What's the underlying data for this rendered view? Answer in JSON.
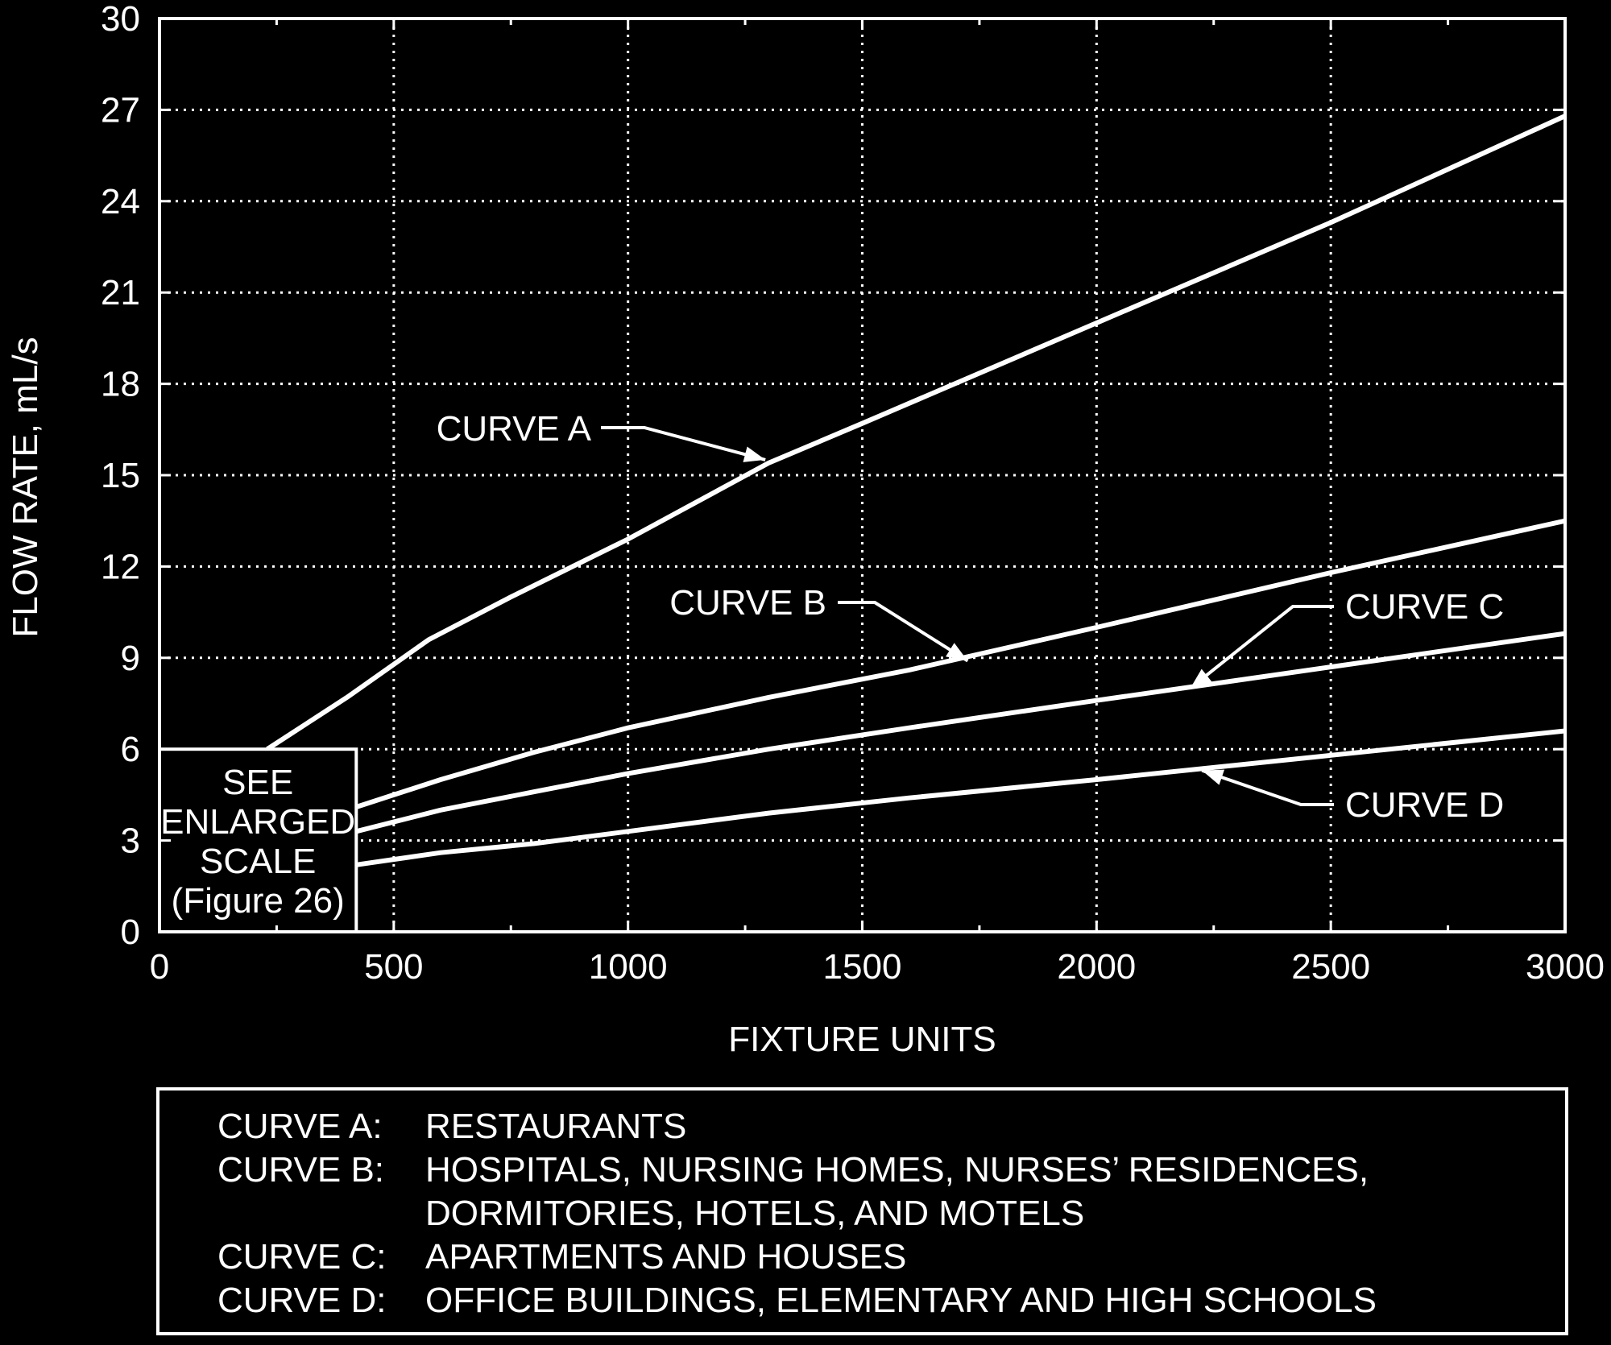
{
  "chart_data": {
    "type": "line",
    "xlabel": "FIXTURE UNITS",
    "ylabel": "FLOW RATE, mL/s",
    "xlim": [
      0,
      3000
    ],
    "ylim": [
      0,
      30
    ],
    "x_ticks": [
      0,
      500,
      1000,
      1500,
      2000,
      2500,
      3000
    ],
    "y_ticks": [
      0,
      3,
      6,
      9,
      12,
      15,
      18,
      21,
      24,
      27,
      30
    ],
    "x_tick_labels": [
      "0",
      "500",
      "1000",
      "1500",
      "2000",
      "2500",
      "3000"
    ],
    "y_tick_labels": [
      "0",
      "3",
      "6",
      "9",
      "12",
      "15",
      "18",
      "21",
      "24",
      "27",
      "30"
    ],
    "grid": true,
    "series": [
      {
        "name": "CURVE A",
        "x": [
          230,
          400,
          575,
          750,
          1000,
          1300,
          1500,
          2000,
          2500,
          3000
        ],
        "y": [
          6.0,
          7.7,
          9.6,
          11.0,
          12.9,
          15.4,
          16.7,
          20.0,
          23.3,
          26.8
        ]
      },
      {
        "name": "CURVE B",
        "x": [
          420,
          600,
          800,
          1000,
          1300,
          1600,
          2000,
          2500,
          3000
        ],
        "y": [
          4.1,
          5.0,
          5.9,
          6.7,
          7.7,
          8.6,
          10.0,
          11.8,
          13.5
        ]
      },
      {
        "name": "CURVE C",
        "x": [
          420,
          600,
          800,
          1000,
          1300,
          1600,
          2000,
          2500,
          3000
        ],
        "y": [
          3.3,
          4.0,
          4.6,
          5.2,
          6.0,
          6.7,
          7.6,
          8.7,
          9.8
        ]
      },
      {
        "name": "CURVE D",
        "x": [
          420,
          600,
          800,
          1000,
          1300,
          1600,
          2000,
          2500,
          3000
        ],
        "y": [
          2.2,
          2.6,
          2.9,
          3.3,
          3.9,
          4.4,
          5.0,
          5.8,
          6.6
        ]
      }
    ],
    "annotations": {
      "curve_a": "CURVE A",
      "curve_b": "CURVE B",
      "curve_c": "CURVE C",
      "curve_d": "CURVE D",
      "inset_box": [
        "SEE",
        "ENLARGED",
        "SCALE",
        "(Figure 26)"
      ]
    },
    "legend": {
      "placement": "bottom",
      "rows": [
        {
          "key": "CURVE A:",
          "text": "RESTAURANTS"
        },
        {
          "key": "CURVE B:",
          "text": "HOSPITALS, NURSING HOMES, NURSES’ RESIDENCES,"
        },
        {
          "key": "",
          "text": "DORMITORIES, HOTELS, AND MOTELS"
        },
        {
          "key": "CURVE C:",
          "text": "APARTMENTS AND HOUSES"
        },
        {
          "key": "CURVE D:",
          "text": "OFFICE BUILDINGS, ELEMENTARY AND HIGH SCHOOLS"
        }
      ]
    },
    "colors": {
      "background": "#000000",
      "foreground": "#ffffff"
    }
  }
}
